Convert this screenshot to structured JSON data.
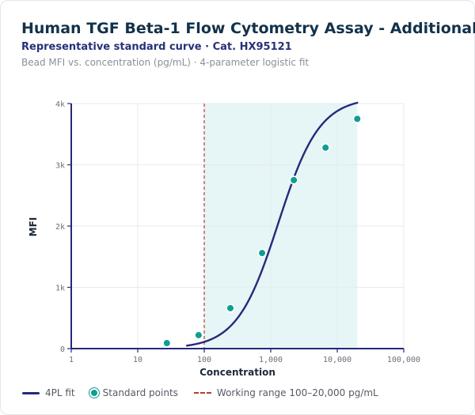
{
  "header": {
    "title": "Human TGF Beta-1 Flow Cytometry Assay - Additional",
    "subtitle": "Representative standard curve · Cat. HX95121",
    "caption": "Bead MFI vs. concentration (pg/mL) · 4-parameter logistic fit"
  },
  "chart_data": {
    "type": "scatter",
    "xlabel": "Concentration",
    "ylabel": "MFI",
    "xscale": "log",
    "xlim": [
      1,
      100000
    ],
    "ylim": [
      0,
      4000
    ],
    "x_ticks": [
      {
        "value": 1,
        "label": "1"
      },
      {
        "value": 10,
        "label": "10"
      },
      {
        "value": 100,
        "label": "100"
      },
      {
        "value": 1000,
        "label": "1,000"
      },
      {
        "value": 10000,
        "label": "10,000"
      },
      {
        "value": 100000,
        "label": "100,000"
      }
    ],
    "y_ticks": [
      {
        "value": 0,
        "label": "0"
      },
      {
        "value": 1000,
        "label": "1k"
      },
      {
        "value": 2000,
        "label": "2k"
      },
      {
        "value": 3000,
        "label": "3k"
      },
      {
        "value": 4000,
        "label": "4k"
      }
    ],
    "grid": true,
    "series": [
      {
        "name": "Standard points",
        "type": "scatter",
        "color": "#0f9e93",
        "points": [
          {
            "x": 27.4,
            "y": 90
          },
          {
            "x": 82.3,
            "y": 220
          },
          {
            "x": 247,
            "y": 660
          },
          {
            "x": 741,
            "y": 1560
          },
          {
            "x": 2222,
            "y": 2750
          },
          {
            "x": 6667,
            "y": 3280
          },
          {
            "x": 20000,
            "y": 3750
          }
        ]
      },
      {
        "name": "4PL fit",
        "type": "line",
        "color": "#25297a",
        "model": {
          "a": 0,
          "b": 1.4,
          "c": 1300,
          "d": 4100
        },
        "x_range": [
          55,
          20000
        ]
      }
    ],
    "reference_lines": [
      {
        "axis": "x",
        "value": 100,
        "style": "dashed",
        "color": "#c0392b"
      }
    ],
    "shaded_range": {
      "x_from": 100,
      "x_to": 20000,
      "color": "#e6f5f5"
    },
    "legend": {
      "position": "bottom-left",
      "items": [
        {
          "kind": "line",
          "label": "4PL fit",
          "color": "#25297a"
        },
        {
          "kind": "dot",
          "label": "Standard points",
          "color": "#0f9e93"
        },
        {
          "kind": "dashed",
          "label": "Working range 100–20,000 pg/mL",
          "color": "#c0392b"
        }
      ]
    }
  }
}
